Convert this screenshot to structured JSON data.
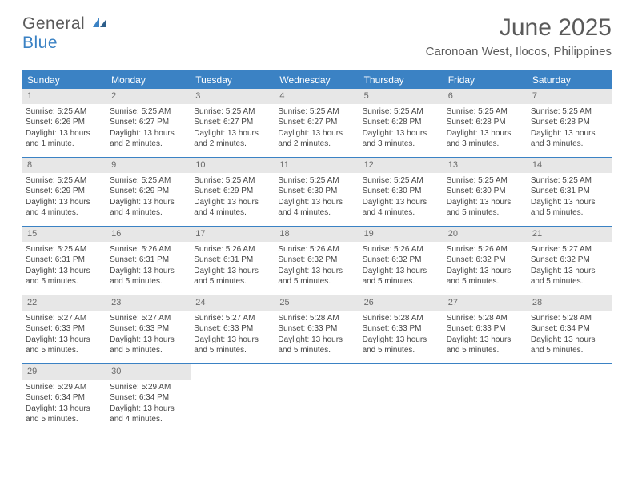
{
  "brand": {
    "part1": "General",
    "part2": "Blue"
  },
  "title": "June 2025",
  "location": "Caronoan West, Ilocos, Philippines",
  "colors": {
    "accent": "#3b82c4",
    "header_bg": "#3b82c4",
    "daynum_bg": "#e7e7e7",
    "text": "#5a5a5a",
    "body_text": "#454545"
  },
  "weekdays": [
    "Sunday",
    "Monday",
    "Tuesday",
    "Wednesday",
    "Thursday",
    "Friday",
    "Saturday"
  ],
  "weeks": [
    [
      {
        "n": "1",
        "sr": "Sunrise: 5:25 AM",
        "ss": "Sunset: 6:26 PM",
        "d1": "Daylight: 13 hours",
        "d2": "and 1 minute."
      },
      {
        "n": "2",
        "sr": "Sunrise: 5:25 AM",
        "ss": "Sunset: 6:27 PM",
        "d1": "Daylight: 13 hours",
        "d2": "and 2 minutes."
      },
      {
        "n": "3",
        "sr": "Sunrise: 5:25 AM",
        "ss": "Sunset: 6:27 PM",
        "d1": "Daylight: 13 hours",
        "d2": "and 2 minutes."
      },
      {
        "n": "4",
        "sr": "Sunrise: 5:25 AM",
        "ss": "Sunset: 6:27 PM",
        "d1": "Daylight: 13 hours",
        "d2": "and 2 minutes."
      },
      {
        "n": "5",
        "sr": "Sunrise: 5:25 AM",
        "ss": "Sunset: 6:28 PM",
        "d1": "Daylight: 13 hours",
        "d2": "and 3 minutes."
      },
      {
        "n": "6",
        "sr": "Sunrise: 5:25 AM",
        "ss": "Sunset: 6:28 PM",
        "d1": "Daylight: 13 hours",
        "d2": "and 3 minutes."
      },
      {
        "n": "7",
        "sr": "Sunrise: 5:25 AM",
        "ss": "Sunset: 6:28 PM",
        "d1": "Daylight: 13 hours",
        "d2": "and 3 minutes."
      }
    ],
    [
      {
        "n": "8",
        "sr": "Sunrise: 5:25 AM",
        "ss": "Sunset: 6:29 PM",
        "d1": "Daylight: 13 hours",
        "d2": "and 4 minutes."
      },
      {
        "n": "9",
        "sr": "Sunrise: 5:25 AM",
        "ss": "Sunset: 6:29 PM",
        "d1": "Daylight: 13 hours",
        "d2": "and 4 minutes."
      },
      {
        "n": "10",
        "sr": "Sunrise: 5:25 AM",
        "ss": "Sunset: 6:29 PM",
        "d1": "Daylight: 13 hours",
        "d2": "and 4 minutes."
      },
      {
        "n": "11",
        "sr": "Sunrise: 5:25 AM",
        "ss": "Sunset: 6:30 PM",
        "d1": "Daylight: 13 hours",
        "d2": "and 4 minutes."
      },
      {
        "n": "12",
        "sr": "Sunrise: 5:25 AM",
        "ss": "Sunset: 6:30 PM",
        "d1": "Daylight: 13 hours",
        "d2": "and 4 minutes."
      },
      {
        "n": "13",
        "sr": "Sunrise: 5:25 AM",
        "ss": "Sunset: 6:30 PM",
        "d1": "Daylight: 13 hours",
        "d2": "and 5 minutes."
      },
      {
        "n": "14",
        "sr": "Sunrise: 5:25 AM",
        "ss": "Sunset: 6:31 PM",
        "d1": "Daylight: 13 hours",
        "d2": "and 5 minutes."
      }
    ],
    [
      {
        "n": "15",
        "sr": "Sunrise: 5:25 AM",
        "ss": "Sunset: 6:31 PM",
        "d1": "Daylight: 13 hours",
        "d2": "and 5 minutes."
      },
      {
        "n": "16",
        "sr": "Sunrise: 5:26 AM",
        "ss": "Sunset: 6:31 PM",
        "d1": "Daylight: 13 hours",
        "d2": "and 5 minutes."
      },
      {
        "n": "17",
        "sr": "Sunrise: 5:26 AM",
        "ss": "Sunset: 6:31 PM",
        "d1": "Daylight: 13 hours",
        "d2": "and 5 minutes."
      },
      {
        "n": "18",
        "sr": "Sunrise: 5:26 AM",
        "ss": "Sunset: 6:32 PM",
        "d1": "Daylight: 13 hours",
        "d2": "and 5 minutes."
      },
      {
        "n": "19",
        "sr": "Sunrise: 5:26 AM",
        "ss": "Sunset: 6:32 PM",
        "d1": "Daylight: 13 hours",
        "d2": "and 5 minutes."
      },
      {
        "n": "20",
        "sr": "Sunrise: 5:26 AM",
        "ss": "Sunset: 6:32 PM",
        "d1": "Daylight: 13 hours",
        "d2": "and 5 minutes."
      },
      {
        "n": "21",
        "sr": "Sunrise: 5:27 AM",
        "ss": "Sunset: 6:32 PM",
        "d1": "Daylight: 13 hours",
        "d2": "and 5 minutes."
      }
    ],
    [
      {
        "n": "22",
        "sr": "Sunrise: 5:27 AM",
        "ss": "Sunset: 6:33 PM",
        "d1": "Daylight: 13 hours",
        "d2": "and 5 minutes."
      },
      {
        "n": "23",
        "sr": "Sunrise: 5:27 AM",
        "ss": "Sunset: 6:33 PM",
        "d1": "Daylight: 13 hours",
        "d2": "and 5 minutes."
      },
      {
        "n": "24",
        "sr": "Sunrise: 5:27 AM",
        "ss": "Sunset: 6:33 PM",
        "d1": "Daylight: 13 hours",
        "d2": "and 5 minutes."
      },
      {
        "n": "25",
        "sr": "Sunrise: 5:28 AM",
        "ss": "Sunset: 6:33 PM",
        "d1": "Daylight: 13 hours",
        "d2": "and 5 minutes."
      },
      {
        "n": "26",
        "sr": "Sunrise: 5:28 AM",
        "ss": "Sunset: 6:33 PM",
        "d1": "Daylight: 13 hours",
        "d2": "and 5 minutes."
      },
      {
        "n": "27",
        "sr": "Sunrise: 5:28 AM",
        "ss": "Sunset: 6:33 PM",
        "d1": "Daylight: 13 hours",
        "d2": "and 5 minutes."
      },
      {
        "n": "28",
        "sr": "Sunrise: 5:28 AM",
        "ss": "Sunset: 6:34 PM",
        "d1": "Daylight: 13 hours",
        "d2": "and 5 minutes."
      }
    ],
    [
      {
        "n": "29",
        "sr": "Sunrise: 5:29 AM",
        "ss": "Sunset: 6:34 PM",
        "d1": "Daylight: 13 hours",
        "d2": "and 5 minutes."
      },
      {
        "n": "30",
        "sr": "Sunrise: 5:29 AM",
        "ss": "Sunset: 6:34 PM",
        "d1": "Daylight: 13 hours",
        "d2": "and 4 minutes."
      },
      {
        "empty": true
      },
      {
        "empty": true
      },
      {
        "empty": true
      },
      {
        "empty": true
      },
      {
        "empty": true
      }
    ]
  ]
}
